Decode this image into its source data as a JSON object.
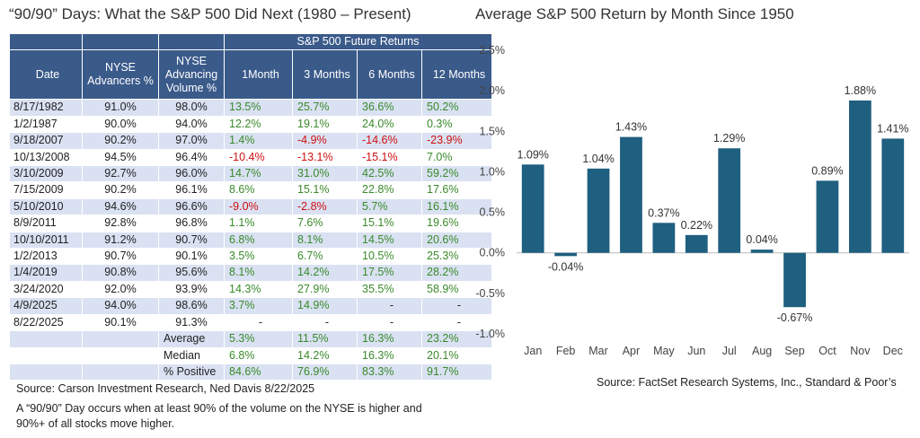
{
  "left_title": "“90/90” Days: What the S&P 500 Did Next (1980 – Present)",
  "table": {
    "group_header": "S&P 500 Future Returns",
    "headers": {
      "date": "Date",
      "adv_line1": "NYSE",
      "adv_line2": "Advancers %",
      "vol_line1": "NYSE",
      "vol_line2": "Advancing",
      "vol_line3": "Volume %",
      "r1": "1Month",
      "r3": "3 Months",
      "r6": "6 Months",
      "r12": "12 Months"
    },
    "rows": [
      {
        "date": "8/17/1982",
        "adv": "91.0%",
        "vol": "98.0%",
        "r1": "13.5%",
        "r3": "25.7%",
        "r6": "36.6%",
        "r12": "50.2%"
      },
      {
        "date": "1/2/1987",
        "adv": "90.0%",
        "vol": "94.0%",
        "r1": "12.2%",
        "r3": "19.1%",
        "r6": "24.0%",
        "r12": "0.3%"
      },
      {
        "date": "9/18/2007",
        "adv": "90.2%",
        "vol": "97.0%",
        "r1": "1.4%",
        "r3": "-4.9%",
        "r6": "-14.6%",
        "r12": "-23.9%"
      },
      {
        "date": "10/13/2008",
        "adv": "94.5%",
        "vol": "96.4%",
        "r1": "-10.4%",
        "r3": "-13.1%",
        "r6": "-15.1%",
        "r12": "7.0%"
      },
      {
        "date": "3/10/2009",
        "adv": "92.7%",
        "vol": "96.0%",
        "r1": "14.7%",
        "r3": "31.0%",
        "r6": "42.5%",
        "r12": "59.2%"
      },
      {
        "date": "7/15/2009",
        "adv": "90.2%",
        "vol": "96.1%",
        "r1": "8.6%",
        "r3": "15.1%",
        "r6": "22.8%",
        "r12": "17.6%"
      },
      {
        "date": "5/10/2010",
        "adv": "94.6%",
        "vol": "96.6%",
        "r1": "-9.0%",
        "r3": "-2.8%",
        "r6": "5.7%",
        "r12": "16.1%"
      },
      {
        "date": "8/9/2011",
        "adv": "92.8%",
        "vol": "96.8%",
        "r1": "1.1%",
        "r3": "7.6%",
        "r6": "15.1%",
        "r12": "19.6%"
      },
      {
        "date": "10/10/2011",
        "adv": "91.2%",
        "vol": "90.7%",
        "r1": "6.8%",
        "r3": "8.1%",
        "r6": "14.5%",
        "r12": "20.6%"
      },
      {
        "date": "1/2/2013",
        "adv": "90.7%",
        "vol": "90.1%",
        "r1": "3.5%",
        "r3": "6.7%",
        "r6": "10.5%",
        "r12": "25.3%"
      },
      {
        "date": "1/4/2019",
        "adv": "90.8%",
        "vol": "95.6%",
        "r1": "8.1%",
        "r3": "14.2%",
        "r6": "17.5%",
        "r12": "28.2%"
      },
      {
        "date": "3/24/2020",
        "adv": "92.0%",
        "vol": "93.9%",
        "r1": "14.3%",
        "r3": "27.9%",
        "r6": "35.5%",
        "r12": "58.9%"
      },
      {
        "date": "4/9/2025",
        "adv": "94.0%",
        "vol": "98.6%",
        "r1": "3.7%",
        "r3": "14.9%",
        "r6": "-",
        "r12": "-"
      },
      {
        "date": "8/22/2025",
        "adv": "90.1%",
        "vol": "91.3%",
        "r1": "-",
        "r3": "-",
        "r6": "-",
        "r12": "-"
      }
    ],
    "summary": [
      {
        "label": "Average",
        "r1": "5.3%",
        "r3": "11.5%",
        "r6": "16.3%",
        "r12": "23.2%"
      },
      {
        "label": "Median",
        "r1": "6.8%",
        "r3": "14.2%",
        "r6": "16.3%",
        "r12": "20.1%"
      },
      {
        "label": "% Positive",
        "r1": "84.6%",
        "r3": "76.9%",
        "r6": "83.3%",
        "r12": "91.7%"
      }
    ],
    "colors": {
      "header": "#3a5a8a",
      "band": "#d9e1f2",
      "positive": "#3a8a2a",
      "negative": "#d01010"
    }
  },
  "table_source": "Source: Carson Investment Research, Ned Davis  8/22/2025",
  "table_note": "A “90/90” Day occurs when at least 90% of the volume on the NYSE is higher and 90%+ of all stocks move higher.",
  "chart_data": {
    "type": "bar",
    "title": "Average S&P 500 Return by Month Since 1950",
    "categories": [
      "Jan",
      "Feb",
      "Mar",
      "Apr",
      "May",
      "Jun",
      "Jul",
      "Aug",
      "Sep",
      "Oct",
      "Nov",
      "Dec"
    ],
    "values": [
      1.09,
      -0.04,
      1.04,
      1.43,
      0.37,
      0.22,
      1.29,
      0.04,
      -0.67,
      0.89,
      1.88,
      1.41
    ],
    "value_labels": [
      "1.09%",
      "-0.04%",
      "1.04%",
      "1.43%",
      "0.37%",
      "0.22%",
      "1.29%",
      "0.04%",
      "-0.67%",
      "0.89%",
      "1.88%",
      "1.41%"
    ],
    "yticks": [
      2.5,
      2.0,
      1.5,
      1.0,
      0.5,
      0.0,
      -0.5,
      -1.0
    ],
    "ytick_labels": [
      "2.5%",
      "2.0%",
      "1.5%",
      "1.0%",
      "0.5%",
      "0.0%",
      "-0.5%",
      "-1.0%"
    ],
    "ylim": [
      -1.0,
      2.5
    ],
    "grid": false,
    "bar_color": "#1f5f7f",
    "source": "Source: FactSet Research Systems, Inc., Standard & Poor’s"
  }
}
